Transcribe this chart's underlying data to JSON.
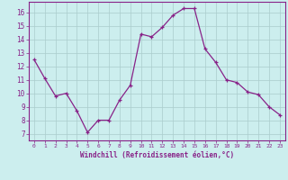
{
  "x": [
    0,
    1,
    2,
    3,
    4,
    5,
    6,
    7,
    8,
    9,
    10,
    11,
    12,
    13,
    14,
    15,
    16,
    17,
    18,
    19,
    20,
    21,
    22,
    23
  ],
  "y": [
    12.5,
    11.1,
    9.8,
    10.0,
    8.7,
    7.1,
    8.0,
    8.0,
    9.5,
    10.6,
    14.4,
    14.2,
    14.9,
    15.8,
    16.3,
    16.3,
    13.3,
    12.3,
    11.0,
    10.8,
    10.1,
    9.9,
    9.0,
    8.4
  ],
  "line_color": "#882288",
  "marker": "+",
  "marker_size": 3,
  "linewidth": 0.9,
  "xlabel": "Windchill (Refroidissement éolien,°C)",
  "xlim": [
    -0.5,
    23.5
  ],
  "ylim": [
    6.5,
    16.8
  ],
  "yticks": [
    7,
    8,
    9,
    10,
    11,
    12,
    13,
    14,
    15,
    16
  ],
  "xticks": [
    0,
    1,
    2,
    3,
    4,
    5,
    6,
    7,
    8,
    9,
    10,
    11,
    12,
    13,
    14,
    15,
    16,
    17,
    18,
    19,
    20,
    21,
    22,
    23
  ],
  "bg_color": "#cceeee",
  "grid_color": "#aacccc",
  "tick_color": "#882288",
  "label_color": "#882288",
  "border_color": "#882288"
}
